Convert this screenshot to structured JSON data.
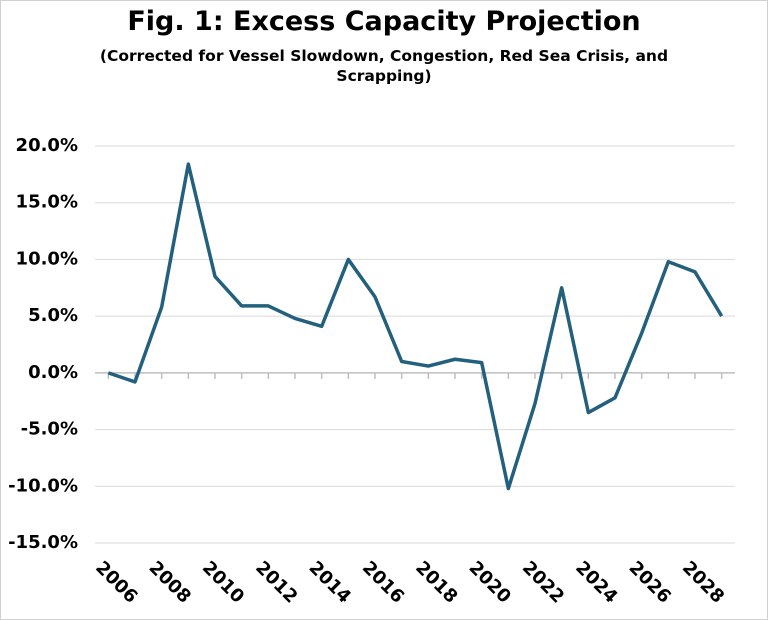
{
  "chart_data": {
    "type": "line",
    "title": "Fig. 1: Excess Capacity Projection",
    "subtitle": "(Corrected for Vessel Slowdown, Congestion, Red Sea Crisis, and Scrapping)",
    "x": [
      2006,
      2007,
      2008,
      2009,
      2010,
      2011,
      2012,
      2013,
      2014,
      2015,
      2016,
      2017,
      2018,
      2019,
      2020,
      2021,
      2022,
      2023,
      2024,
      2025,
      2026,
      2027,
      2028,
      2029
    ],
    "series": [
      {
        "name": "Excess capacity",
        "color": "#23607e",
        "values": [
          0.0,
          -0.8,
          5.8,
          18.4,
          8.5,
          5.9,
          5.9,
          4.8,
          4.1,
          10.0,
          6.7,
          1.0,
          0.6,
          1.2,
          0.9,
          -10.2,
          -2.7,
          7.5,
          -3.5,
          -2.2,
          3.5,
          9.8,
          8.9,
          5.0
        ]
      }
    ],
    "xlim": [
      2005.5,
      2029.5
    ],
    "xticks": [
      2006,
      2008,
      2010,
      2012,
      2014,
      2016,
      2018,
      2020,
      2022,
      2024,
      2026,
      2028
    ],
    "ylim": [
      -15,
      20
    ],
    "yticks": [
      {
        "value": 20,
        "label": "20.0%"
      },
      {
        "value": 15,
        "label": "15.0%"
      },
      {
        "value": 10,
        "label": "10.0%"
      },
      {
        "value": 5,
        "label": "5.0%"
      },
      {
        "value": 0,
        "label": "0.0%"
      },
      {
        "value": -5,
        "label": "-5.0%"
      },
      {
        "value": -10,
        "label": "-10.0%"
      },
      {
        "value": -15,
        "label": "-15.0%"
      }
    ],
    "grid": true
  }
}
